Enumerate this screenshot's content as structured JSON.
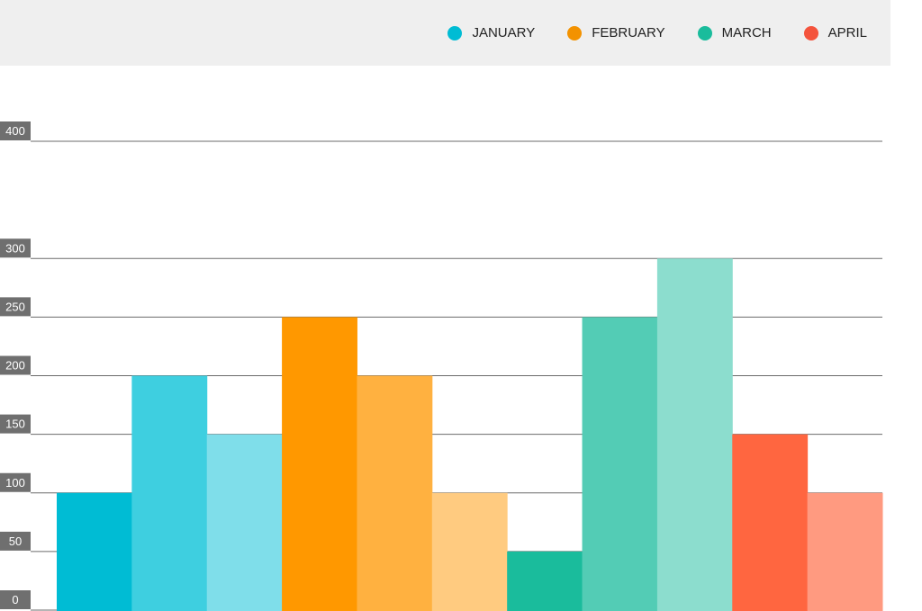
{
  "chart_data": {
    "type": "bar",
    "title": "",
    "xlabel": "",
    "ylabel": "",
    "ylim": [
      0,
      400
    ],
    "y_ticks": [
      0,
      50,
      100,
      150,
      200,
      250,
      300,
      400
    ],
    "grid": true,
    "legend_position": "top-right",
    "series": [
      {
        "name": "JANUARY",
        "color": "#00BCD4",
        "values": [
          100,
          200,
          150
        ],
        "shades": [
          "#00BCD4",
          "#3ECFE0",
          "#7FDEEA"
        ]
      },
      {
        "name": "FEBRUARY",
        "color": "#F39200",
        "values": [
          250,
          200,
          100
        ],
        "shades": [
          "#FF9800",
          "#FFB140",
          "#FFCB80"
        ]
      },
      {
        "name": "MARCH",
        "color": "#1ABC9C",
        "values": [
          50,
          250,
          300
        ],
        "shades": [
          "#1ABC9C",
          "#53CCB5",
          "#8CDDCE"
        ]
      },
      {
        "name": "APRIL",
        "color": "#F4533C",
        "values": [
          150,
          100
        ],
        "shades": [
          "#FF6640",
          "#FF9A80"
        ]
      }
    ]
  }
}
